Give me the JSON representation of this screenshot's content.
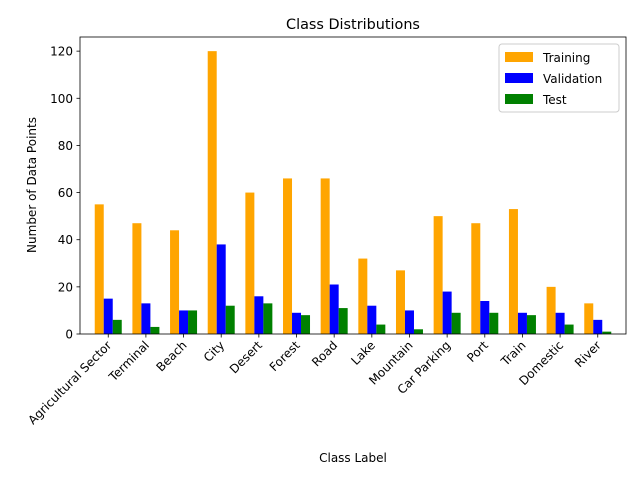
{
  "chart_data": {
    "type": "bar",
    "title": "Class Distributions",
    "xlabel": "Class Label",
    "ylabel": "Number of Data Points",
    "ylim": [
      0,
      126
    ],
    "yticks": [
      0,
      20,
      40,
      60,
      80,
      100,
      120
    ],
    "grid": false,
    "legend_position": "top-right",
    "categories": [
      "Agricultural Sector",
      "Terminal",
      "Beach",
      "City",
      "Desert",
      "Forest",
      "Road",
      "Lake",
      "Mountain",
      "Car Parking",
      "Port",
      "Train",
      "Domestic",
      "River"
    ],
    "series": [
      {
        "name": "Training",
        "color": "#FFA500",
        "values": [
          55,
          47,
          44,
          120,
          60,
          66,
          66,
          32,
          27,
          50,
          47,
          53,
          20,
          13
        ]
      },
      {
        "name": "Validation",
        "color": "#0000FF",
        "values": [
          15,
          13,
          10,
          38,
          16,
          9,
          21,
          12,
          10,
          18,
          14,
          9,
          9,
          6
        ]
      },
      {
        "name": "Test",
        "color": "#008000",
        "values": [
          6,
          3,
          10,
          12,
          13,
          8,
          11,
          4,
          2,
          9,
          9,
          8,
          4,
          1
        ]
      }
    ]
  }
}
